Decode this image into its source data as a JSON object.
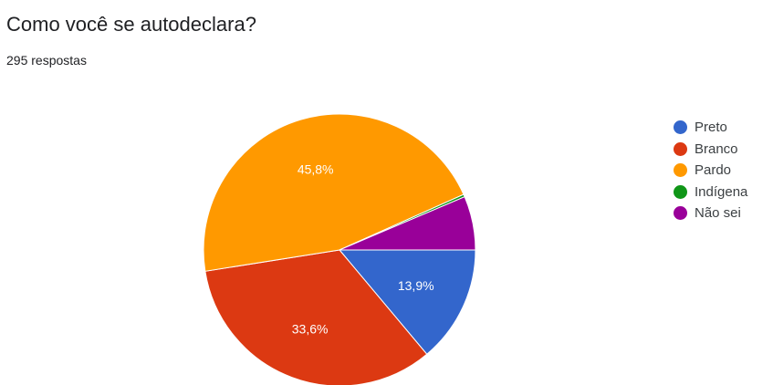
{
  "header": {
    "title": "Como você se autodeclara?",
    "responses": "295 respostas"
  },
  "chart_data": {
    "type": "pie",
    "title": "Como você se autodeclara?",
    "categories": [
      "Preto",
      "Branco",
      "Pardo",
      "Indígena",
      "Não sei"
    ],
    "values": [
      13.9,
      33.6,
      45.8,
      0.3,
      6.4
    ],
    "labels": [
      "13,9%",
      "33,6%",
      "45,8%",
      "",
      ""
    ],
    "colors": [
      "#3366cc",
      "#dc3912",
      "#ff9900",
      "#109618",
      "#990099"
    ],
    "legend": "right"
  }
}
